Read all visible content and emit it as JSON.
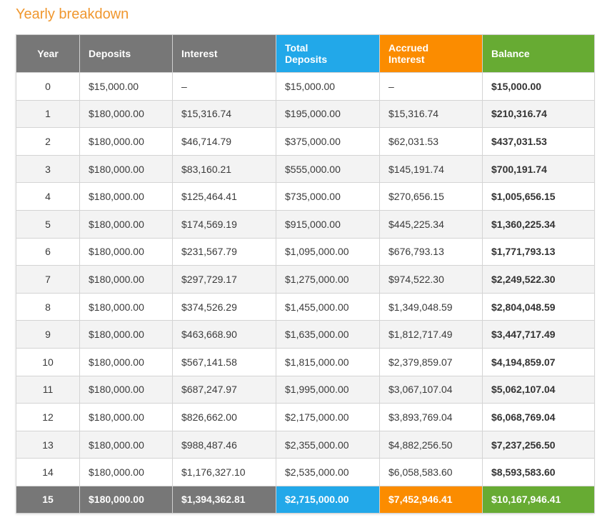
{
  "title": "Yearly breakdown",
  "colors": {
    "title": "#f0972e",
    "header_gray": "#777777",
    "total_deposits": "#22a8e9",
    "accrued_interest": "#fb8c00",
    "balance": "#67ab33"
  },
  "headers": {
    "year": "Year",
    "deposits": "Deposits",
    "interest": "Interest",
    "total_deposits_1": "Total",
    "total_deposits_2": "Deposits",
    "accrued_interest_1": "Accrued",
    "accrued_interest_2": "Interest",
    "balance": "Balance"
  },
  "rows": [
    {
      "year": "0",
      "deposits": "$15,000.00",
      "interest": "–",
      "total_deposits": "$15,000.00",
      "accrued_interest": "–",
      "balance": "$15,000.00"
    },
    {
      "year": "1",
      "deposits": "$180,000.00",
      "interest": "$15,316.74",
      "total_deposits": "$195,000.00",
      "accrued_interest": "$15,316.74",
      "balance": "$210,316.74"
    },
    {
      "year": "2",
      "deposits": "$180,000.00",
      "interest": "$46,714.79",
      "total_deposits": "$375,000.00",
      "accrued_interest": "$62,031.53",
      "balance": "$437,031.53"
    },
    {
      "year": "3",
      "deposits": "$180,000.00",
      "interest": "$83,160.21",
      "total_deposits": "$555,000.00",
      "accrued_interest": "$145,191.74",
      "balance": "$700,191.74"
    },
    {
      "year": "4",
      "deposits": "$180,000.00",
      "interest": "$125,464.41",
      "total_deposits": "$735,000.00",
      "accrued_interest": "$270,656.15",
      "balance": "$1,005,656.15"
    },
    {
      "year": "5",
      "deposits": "$180,000.00",
      "interest": "$174,569.19",
      "total_deposits": "$915,000.00",
      "accrued_interest": "$445,225.34",
      "balance": "$1,360,225.34"
    },
    {
      "year": "6",
      "deposits": "$180,000.00",
      "interest": "$231,567.79",
      "total_deposits": "$1,095,000.00",
      "accrued_interest": "$676,793.13",
      "balance": "$1,771,793.13"
    },
    {
      "year": "7",
      "deposits": "$180,000.00",
      "interest": "$297,729.17",
      "total_deposits": "$1,275,000.00",
      "accrued_interest": "$974,522.30",
      "balance": "$2,249,522.30"
    },
    {
      "year": "8",
      "deposits": "$180,000.00",
      "interest": "$374,526.29",
      "total_deposits": "$1,455,000.00",
      "accrued_interest": "$1,349,048.59",
      "balance": "$2,804,048.59"
    },
    {
      "year": "9",
      "deposits": "$180,000.00",
      "interest": "$463,668.90",
      "total_deposits": "$1,635,000.00",
      "accrued_interest": "$1,812,717.49",
      "balance": "$3,447,717.49"
    },
    {
      "year": "10",
      "deposits": "$180,000.00",
      "interest": "$567,141.58",
      "total_deposits": "$1,815,000.00",
      "accrued_interest": "$2,379,859.07",
      "balance": "$4,194,859.07"
    },
    {
      "year": "11",
      "deposits": "$180,000.00",
      "interest": "$687,247.97",
      "total_deposits": "$1,995,000.00",
      "accrued_interest": "$3,067,107.04",
      "balance": "$5,062,107.04"
    },
    {
      "year": "12",
      "deposits": "$180,000.00",
      "interest": "$826,662.00",
      "total_deposits": "$2,175,000.00",
      "accrued_interest": "$3,893,769.04",
      "balance": "$6,068,769.04"
    },
    {
      "year": "13",
      "deposits": "$180,000.00",
      "interest": "$988,487.46",
      "total_deposits": "$2,355,000.00",
      "accrued_interest": "$4,882,256.50",
      "balance": "$7,237,256.50"
    },
    {
      "year": "14",
      "deposits": "$180,000.00",
      "interest": "$1,176,327.10",
      "total_deposits": "$2,535,000.00",
      "accrued_interest": "$6,058,583.60",
      "balance": "$8,593,583.60"
    }
  ],
  "final_row": {
    "year": "15",
    "deposits": "$180,000.00",
    "interest": "$1,394,362.81",
    "total_deposits": "$2,715,000.00",
    "accrued_interest": "$7,452,946.41",
    "balance": "$10,167,946.41"
  }
}
